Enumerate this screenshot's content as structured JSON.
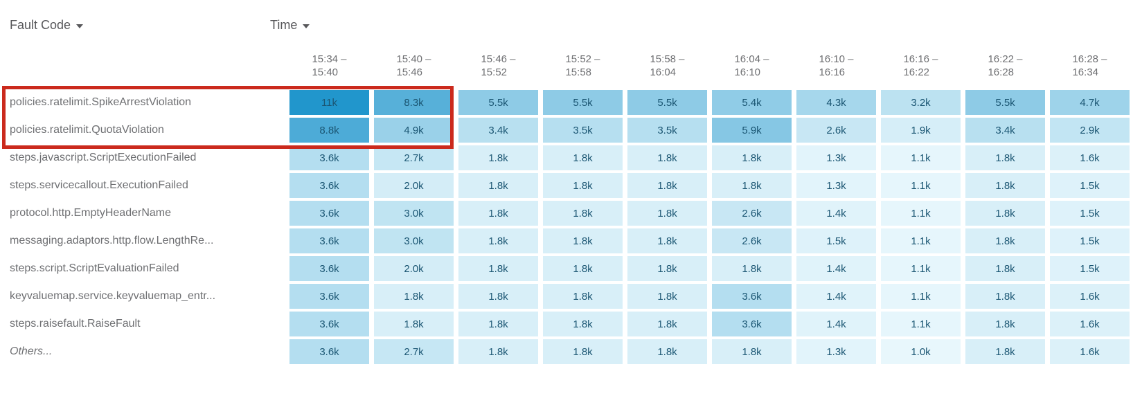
{
  "header": {
    "fault_code_label": "Fault Code",
    "time_label": "Time"
  },
  "heatmap": {
    "min_value_k": 1.0,
    "max_value_k": 11,
    "min_color": "#e8f7fc",
    "max_color": "#2196cc",
    "text_color": "#1b5673"
  },
  "annotation": {
    "highlight_color": "#cb2a1d",
    "highlighted_rows": [
      "policies.ratelimit.SpikeArrestViolation",
      "policies.ratelimit.QuotaViolation"
    ],
    "highlighted_columns": [
      "15:34 – 15:40",
      "15:40 – 15:46"
    ]
  },
  "table": {
    "columns": [
      {
        "top": "15:34 –",
        "bottom": "15:40"
      },
      {
        "top": "15:40 –",
        "bottom": "15:46"
      },
      {
        "top": "15:46 –",
        "bottom": "15:52"
      },
      {
        "top": "15:52 –",
        "bottom": "15:58"
      },
      {
        "top": "15:58 –",
        "bottom": "16:04"
      },
      {
        "top": "16:04 –",
        "bottom": "16:10"
      },
      {
        "top": "16:10 –",
        "bottom": "16:16"
      },
      {
        "top": "16:16 –",
        "bottom": "16:22"
      },
      {
        "top": "16:22 –",
        "bottom": "16:28"
      },
      {
        "top": "16:28 –",
        "bottom": "16:34"
      }
    ],
    "rows": [
      {
        "label": "policies.ratelimit.SpikeArrestViolation",
        "italic": false,
        "values": [
          "11k",
          "8.3k",
          "5.5k",
          "5.5k",
          "5.5k",
          "5.4k",
          "4.3k",
          "3.2k",
          "5.5k",
          "4.7k"
        ]
      },
      {
        "label": "policies.ratelimit.QuotaViolation",
        "italic": false,
        "values": [
          "8.8k",
          "4.9k",
          "3.4k",
          "3.5k",
          "3.5k",
          "5.9k",
          "2.6k",
          "1.9k",
          "3.4k",
          "2.9k"
        ]
      },
      {
        "label": "steps.javascript.ScriptExecutionFailed",
        "italic": false,
        "values": [
          "3.6k",
          "2.7k",
          "1.8k",
          "1.8k",
          "1.8k",
          "1.8k",
          "1.3k",
          "1.1k",
          "1.8k",
          "1.6k"
        ]
      },
      {
        "label": "steps.servicecallout.ExecutionFailed",
        "italic": false,
        "values": [
          "3.6k",
          "2.0k",
          "1.8k",
          "1.8k",
          "1.8k",
          "1.8k",
          "1.3k",
          "1.1k",
          "1.8k",
          "1.5k"
        ]
      },
      {
        "label": "protocol.http.EmptyHeaderName",
        "italic": false,
        "values": [
          "3.6k",
          "3.0k",
          "1.8k",
          "1.8k",
          "1.8k",
          "2.6k",
          "1.4k",
          "1.1k",
          "1.8k",
          "1.5k"
        ]
      },
      {
        "label": "messaging.adaptors.http.flow.LengthRe...",
        "italic": false,
        "values": [
          "3.6k",
          "3.0k",
          "1.8k",
          "1.8k",
          "1.8k",
          "2.6k",
          "1.5k",
          "1.1k",
          "1.8k",
          "1.5k"
        ]
      },
      {
        "label": "steps.script.ScriptEvaluationFailed",
        "italic": false,
        "values": [
          "3.6k",
          "2.0k",
          "1.8k",
          "1.8k",
          "1.8k",
          "1.8k",
          "1.4k",
          "1.1k",
          "1.8k",
          "1.5k"
        ]
      },
      {
        "label": "keyvaluemap.service.keyvaluemap_entr...",
        "italic": false,
        "values": [
          "3.6k",
          "1.8k",
          "1.8k",
          "1.8k",
          "1.8k",
          "3.6k",
          "1.4k",
          "1.1k",
          "1.8k",
          "1.6k"
        ]
      },
      {
        "label": "steps.raisefault.RaiseFault",
        "italic": false,
        "values": [
          "3.6k",
          "1.8k",
          "1.8k",
          "1.8k",
          "1.8k",
          "3.6k",
          "1.4k",
          "1.1k",
          "1.8k",
          "1.6k"
        ]
      },
      {
        "label": "Others...",
        "italic": true,
        "values": [
          "3.6k",
          "2.7k",
          "1.8k",
          "1.8k",
          "1.8k",
          "1.8k",
          "1.3k",
          "1.0k",
          "1.8k",
          "1.6k"
        ]
      }
    ]
  },
  "chart_data": {
    "type": "heatmap",
    "title": "Fault Code by Time",
    "x_axis_label": "Time",
    "y_axis_label": "Fault Code",
    "x_categories": [
      "15:34 – 15:40",
      "15:40 – 15:46",
      "15:46 – 15:52",
      "15:52 – 15:58",
      "15:58 – 16:04",
      "16:04 – 16:10",
      "16:10 – 16:16",
      "16:16 – 16:22",
      "16:22 – 16:28",
      "16:28 – 16:34"
    ],
    "y_categories": [
      "policies.ratelimit.SpikeArrestViolation",
      "policies.ratelimit.QuotaViolation",
      "steps.javascript.ScriptExecutionFailed",
      "steps.servicecallout.ExecutionFailed",
      "protocol.http.EmptyHeaderName",
      "messaging.adaptors.http.flow.LengthRe...",
      "steps.script.ScriptEvaluationFailed",
      "keyvaluemap.service.keyvaluemap_entr...",
      "steps.raisefault.RaiseFault",
      "Others..."
    ],
    "values": [
      [
        11000,
        8300,
        5500,
        5500,
        5500,
        5400,
        4300,
        3200,
        5500,
        4700
      ],
      [
        8800,
        4900,
        3400,
        3500,
        3500,
        5900,
        2600,
        1900,
        3400,
        2900
      ],
      [
        3600,
        2700,
        1800,
        1800,
        1800,
        1800,
        1300,
        1100,
        1800,
        1600
      ],
      [
        3600,
        2000,
        1800,
        1800,
        1800,
        1800,
        1300,
        1100,
        1800,
        1500
      ],
      [
        3600,
        3000,
        1800,
        1800,
        1800,
        2600,
        1400,
        1100,
        1800,
        1500
      ],
      [
        3600,
        3000,
        1800,
        1800,
        1800,
        2600,
        1500,
        1100,
        1800,
        1500
      ],
      [
        3600,
        2000,
        1800,
        1800,
        1800,
        1800,
        1400,
        1100,
        1800,
        1500
      ],
      [
        3600,
        1800,
        1800,
        1800,
        1800,
        3600,
        1400,
        1100,
        1800,
        1600
      ],
      [
        3600,
        1800,
        1800,
        1800,
        1800,
        3600,
        1400,
        1100,
        1800,
        1600
      ],
      [
        3600,
        2700,
        1800,
        1800,
        1800,
        1800,
        1300,
        1000,
        1800,
        1600
      ]
    ],
    "color_scale": {
      "low_value": 1000,
      "high_value": 11000,
      "low_color": "#e8f7fc",
      "high_color": "#2196cc"
    },
    "legend": "none",
    "grid": "white gaps between cells",
    "annotation": "red rectangle outlining the top two fault-code rows across the first two time buckets"
  }
}
